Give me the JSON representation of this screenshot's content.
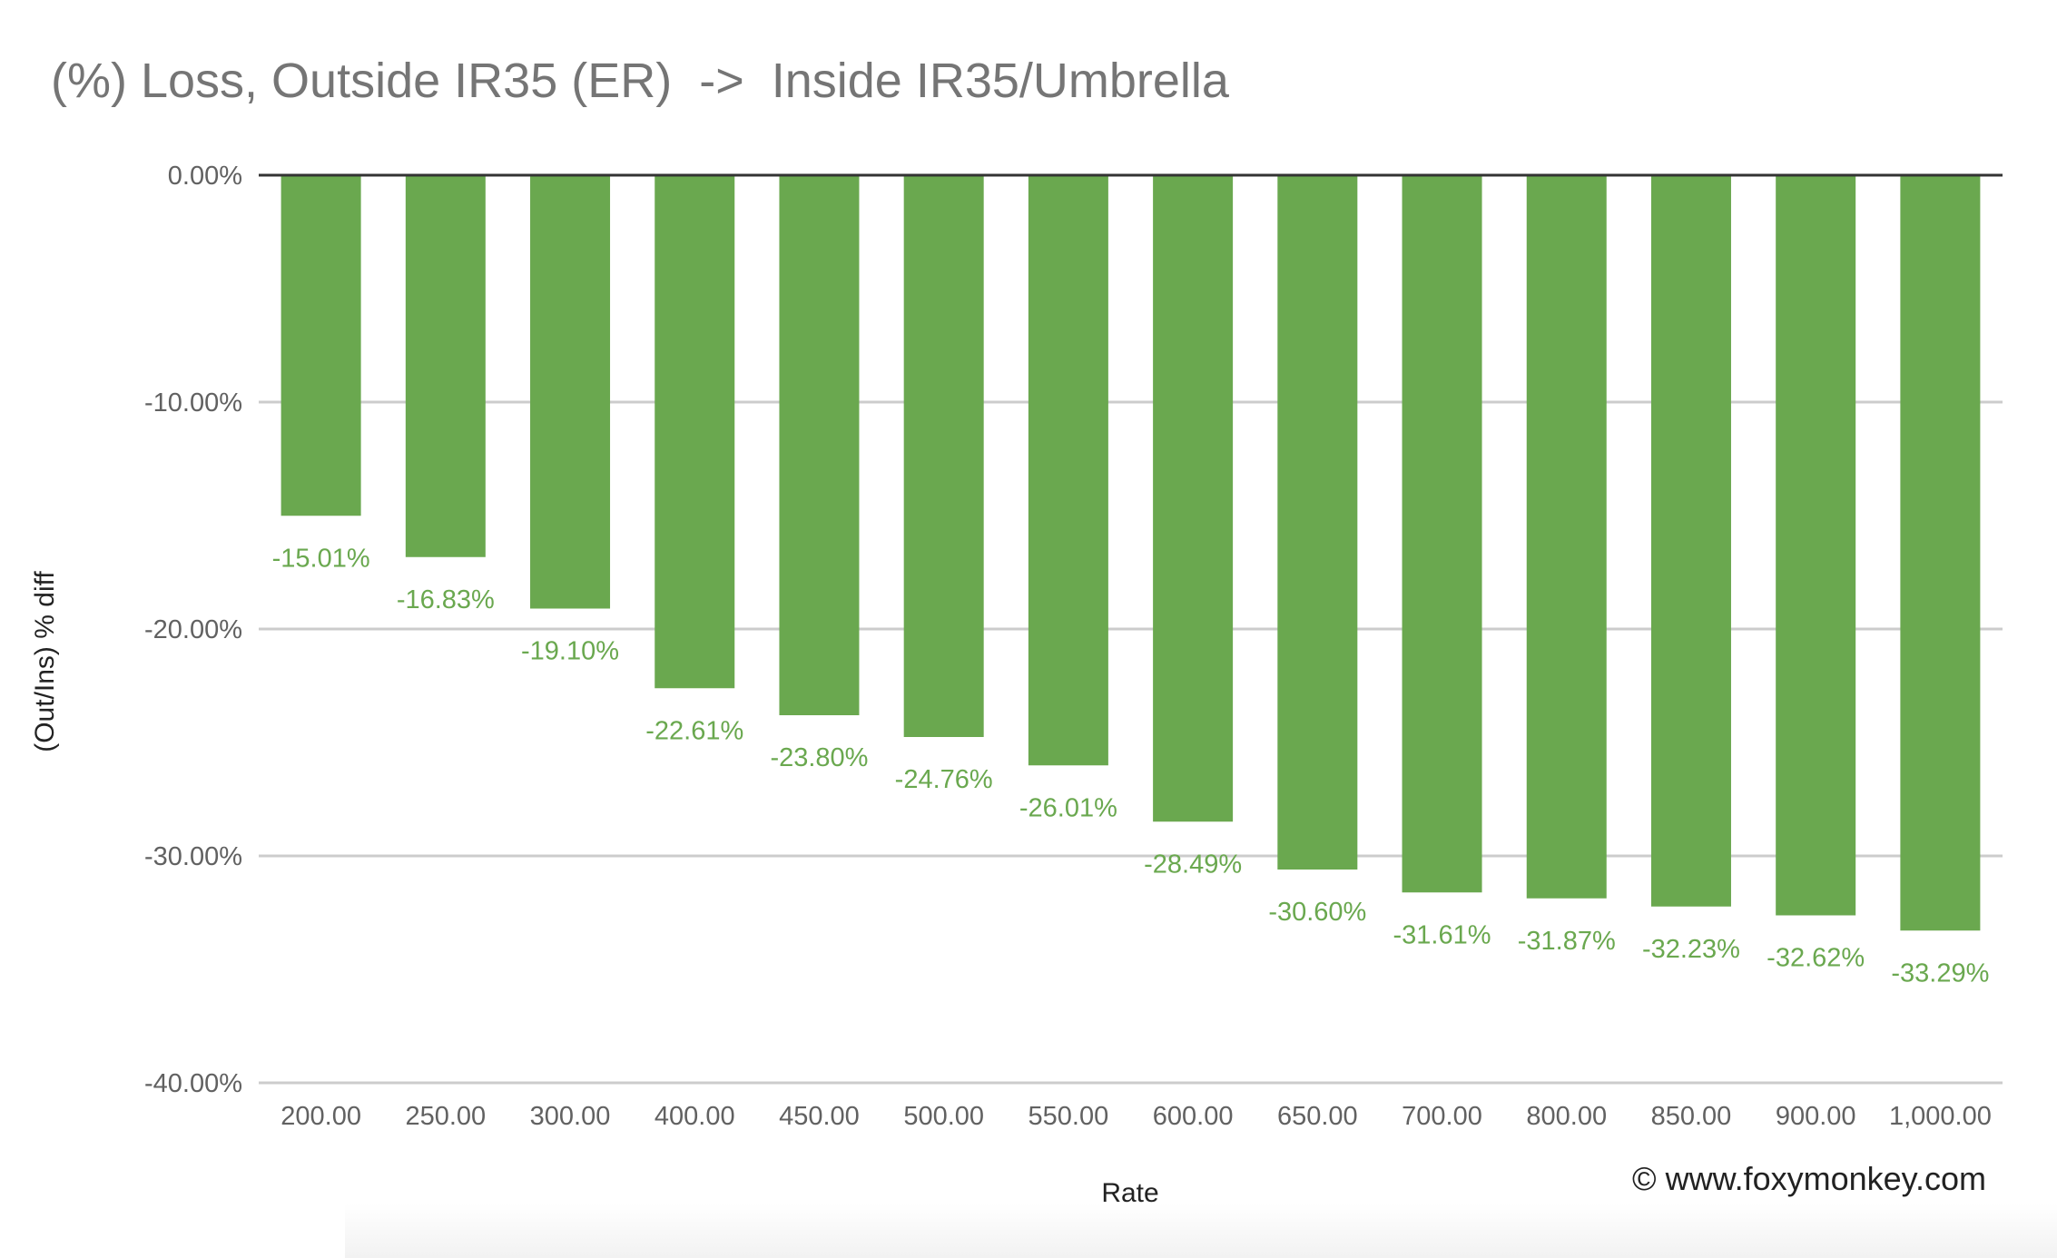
{
  "chart_data": {
    "type": "bar",
    "title": "(%) Loss, Outside IR35 (ER)  ->  Inside IR35/Umbrella",
    "xlabel": "Rate",
    "ylabel": "(Out/Ins) % diff",
    "categories": [
      "200.00",
      "250.00",
      "300.00",
      "400.00",
      "450.00",
      "500.00",
      "550.00",
      "600.00",
      "650.00",
      "700.00",
      "800.00",
      "850.00",
      "900.00",
      "1,000.00"
    ],
    "series": [
      {
        "name": "(Out/Ins) % diff",
        "values": [
          -15.01,
          -16.83,
          -19.1,
          -22.61,
          -23.8,
          -24.76,
          -26.01,
          -28.49,
          -30.6,
          -31.61,
          -31.87,
          -32.23,
          -32.62,
          -33.29
        ],
        "labels": [
          "-15.01%",
          "-16.83%",
          "-19.10%",
          "-22.61%",
          "-23.80%",
          "-24.76%",
          "-26.01%",
          "-28.49%",
          "-30.60%",
          "-31.61%",
          "-31.87%",
          "-32.23%",
          "-32.62%",
          "-33.29%"
        ]
      }
    ],
    "ylim": [
      -40,
      0
    ],
    "yticks": [
      0,
      -10,
      -20,
      -30,
      -40
    ],
    "ytick_labels": [
      "0.00%",
      "-10.00%",
      "-20.00%",
      "-30.00%",
      "-40.00%"
    ],
    "grid": true,
    "legend": "none"
  },
  "colors": {
    "bar": "#6aa84f",
    "label": "#6aa84f",
    "gridline": "#cccccc",
    "zeroline": "#333333",
    "tick_text": "#616161"
  },
  "credit": "© www.foxymonkey.com"
}
